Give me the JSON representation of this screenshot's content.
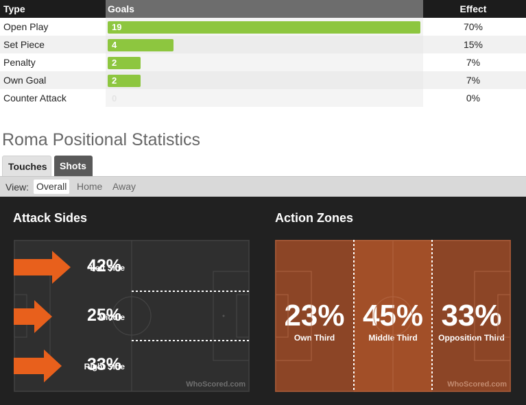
{
  "goals_table": {
    "headers": {
      "type": "Type",
      "goals": "Goals",
      "effect": "Effect"
    },
    "rows": [
      {
        "type": "Open Play",
        "goals": "19",
        "goals_value": 19,
        "effect": "70%"
      },
      {
        "type": "Set Piece",
        "goals": "4",
        "goals_value": 4,
        "effect": "15%"
      },
      {
        "type": "Penalty",
        "goals": "2",
        "goals_value": 2,
        "effect": "7%"
      },
      {
        "type": "Own Goal",
        "goals": "2",
        "goals_value": 2,
        "effect": "7%"
      },
      {
        "type": "Counter Attack",
        "goals": "0",
        "goals_value": 0,
        "effect": "0%"
      }
    ],
    "bar_color": "#8dc63f"
  },
  "section_title": "Roma Positional Statistics",
  "tabs": [
    {
      "label": "Touches",
      "active": false
    },
    {
      "label": "Shots",
      "active": true
    }
  ],
  "view": {
    "label": "View:",
    "options": [
      {
        "label": "Overall",
        "active": true
      },
      {
        "label": "Home",
        "active": false
      },
      {
        "label": "Away",
        "active": false
      }
    ]
  },
  "attack_sides": {
    "title": "Attack Sides",
    "sides": [
      {
        "label": "Left Side",
        "pct": "42%"
      },
      {
        "label": "Middle",
        "pct": "25%"
      },
      {
        "label": "Right Side",
        "pct": "33%"
      }
    ],
    "arrow_color": "#e8601c",
    "watermark": "WhoScored.com"
  },
  "action_zones": {
    "title": "Action Zones",
    "zones": [
      {
        "label": "Own Third",
        "pct": "23%"
      },
      {
        "label": "Middle Third",
        "pct": "45%"
      },
      {
        "label": "Opposition Third",
        "pct": "33%"
      }
    ],
    "zone_colors": [
      "#8c4526",
      "#a24f28",
      "#8c4526"
    ],
    "watermark": "WhoScored.com"
  }
}
